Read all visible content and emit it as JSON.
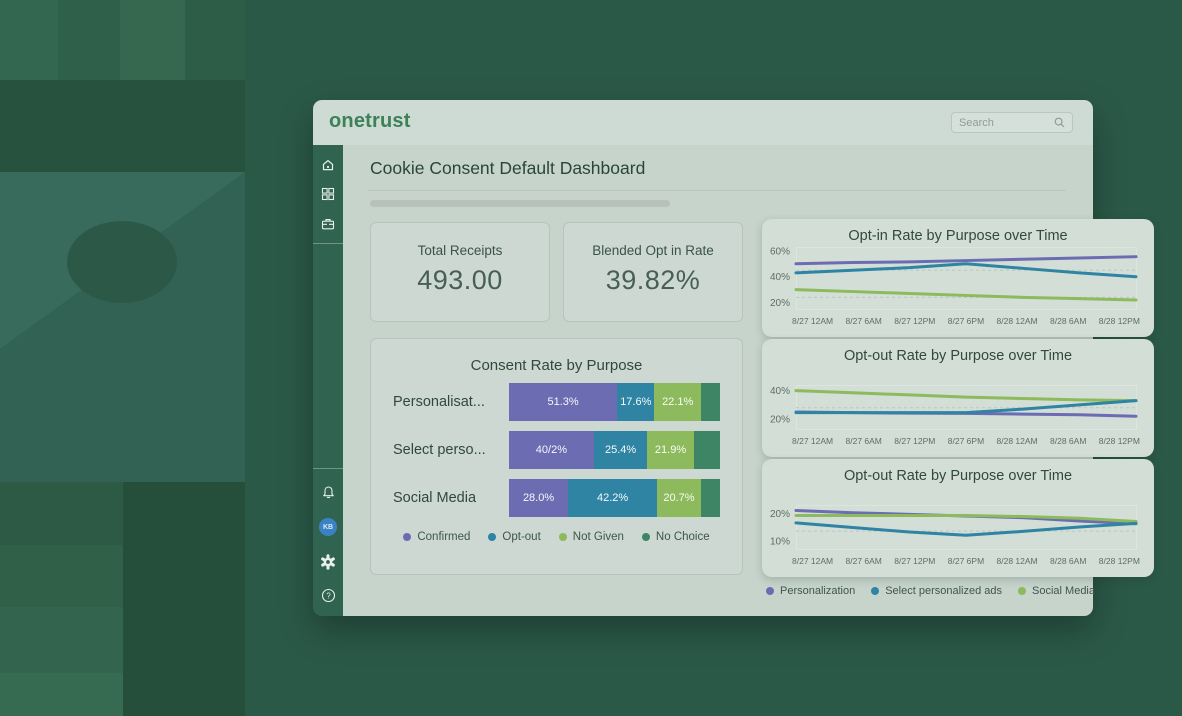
{
  "app": {
    "logo": "onetrust",
    "search_placeholder": "Search"
  },
  "page": {
    "title": "Cookie Consent Default Dashboard"
  },
  "sidebar": {
    "avatar_initials": "KB"
  },
  "stats": [
    {
      "label": "Total Receipts",
      "value": "493.00"
    },
    {
      "label": "Blended Opt in Rate",
      "value": "39.82%"
    }
  ],
  "colors": {
    "accent_purple": "#6B6CB2",
    "accent_teal": "#2F84A3",
    "accent_green": "#8CBA5C",
    "accent_dark_green": "#3E8565",
    "brand_green": "#3D8157"
  },
  "bottom_legend": [
    {
      "label": "Personalization",
      "color": "#6B6CB2"
    },
    {
      "label": "Select personalized ads",
      "color": "#2F84A3"
    },
    {
      "label": "Social Media",
      "color": "#8CBA5C"
    }
  ],
  "chart_data": [
    {
      "type": "bar",
      "variant": "horizontal-stacked",
      "title": "Consent Rate by Purpose",
      "categories": [
        "Personalisat...",
        "Select perso...",
        "Social Media"
      ],
      "xlim": [
        0,
        100
      ],
      "unit": "%",
      "series": [
        {
          "name": "Confirmed",
          "color": "#6B6CB2",
          "values": [
            51.3,
            40.2,
            28.0
          ],
          "labels": [
            "51.3%",
            "40/2%",
            "28.0%"
          ]
        },
        {
          "name": "Opt-out",
          "color": "#2F84A3",
          "values": [
            17.6,
            25.4,
            42.2
          ],
          "labels": [
            "17.6%",
            "25.4%",
            "42.2%"
          ]
        },
        {
          "name": "Not Given",
          "color": "#8CBA5C",
          "values": [
            22.1,
            21.9,
            20.7
          ],
          "labels": [
            "22.1%",
            "21.9%",
            "20.7%"
          ]
        },
        {
          "name": "No Choice",
          "color": "#3E8565",
          "values": [
            9.0,
            12.5,
            9.1
          ],
          "labels": [
            "",
            "",
            ""
          ]
        }
      ]
    },
    {
      "type": "line",
      "title": "Opt-in Rate by Purpose over Time",
      "x": [
        "8/27 12AM",
        "8/27 6AM",
        "8/27 12PM",
        "8/27 6PM",
        "8/28 12AM",
        "8/28 6AM",
        "8/28 12PM"
      ],
      "yticks": [
        60,
        40,
        20
      ],
      "ylim": [
        15,
        63
      ],
      "gridlines": [
        45,
        24
      ],
      "legend_position": "none",
      "series": [
        {
          "name": "Social Media",
          "color": "#8CBA5C",
          "values": [
            30,
            28.5,
            27,
            25.5,
            24,
            23,
            22
          ]
        },
        {
          "name": "Select personalized ads",
          "color": "#2F84A3",
          "values": [
            43,
            45,
            47,
            50,
            46.5,
            43,
            40
          ]
        },
        {
          "name": "Personalization",
          "color": "#6B6CB2",
          "values": [
            50,
            51,
            51.5,
            52.5,
            53.5,
            54.5,
            55.5
          ]
        }
      ]
    },
    {
      "type": "line",
      "title": "Opt-out Rate by Purpose over Time",
      "x": [
        "8/27 12AM",
        "8/27 6AM",
        "8/27 12PM",
        "8/27 6PM",
        "8/28 12AM",
        "8/28 6AM",
        "8/28 12PM"
      ],
      "yticks": [
        40,
        20
      ],
      "ylim": [
        13,
        44
      ],
      "gridlines": [
        28
      ],
      "legend_position": "none",
      "series": [
        {
          "name": "Personalization",
          "color": "#6B6CB2",
          "values": [
            25,
            24.5,
            24.2,
            24,
            23.5,
            23,
            22
          ]
        },
        {
          "name": "Social Media",
          "color": "#8CBA5C",
          "values": [
            40,
            38.5,
            37,
            35.5,
            34.5,
            33.5,
            33
          ]
        },
        {
          "name": "Select personalized ads",
          "color": "#2F84A3",
          "values": [
            24.5,
            24.5,
            24.5,
            24.5,
            27,
            30,
            33
          ]
        }
      ]
    },
    {
      "type": "line",
      "title": "Opt-out Rate by Purpose over Time",
      "x": [
        "8/27 12AM",
        "8/27 6AM",
        "8/27 12PM",
        "8/27 6PM",
        "8/28 12AM",
        "8/28 6AM",
        "8/28 12PM"
      ],
      "yticks": [
        20,
        10
      ],
      "ylim": [
        7,
        23
      ],
      "gridlines": [
        13.5
      ],
      "legend_position": "bottom-left",
      "series": [
        {
          "name": "Personalization",
          "color": "#6B6CB2",
          "values": [
            21,
            20.2,
            19.6,
            19,
            18.4,
            17.2,
            16.2
          ]
        },
        {
          "name": "Social Media",
          "color": "#8CBA5C",
          "values": [
            19.2,
            19.2,
            19.2,
            19.2,
            18.8,
            18.2,
            17
          ]
        },
        {
          "name": "Select personalized ads",
          "color": "#2F84A3",
          "values": [
            16.5,
            14.8,
            13.2,
            12,
            13.4,
            15,
            16.3
          ]
        }
      ]
    }
  ]
}
